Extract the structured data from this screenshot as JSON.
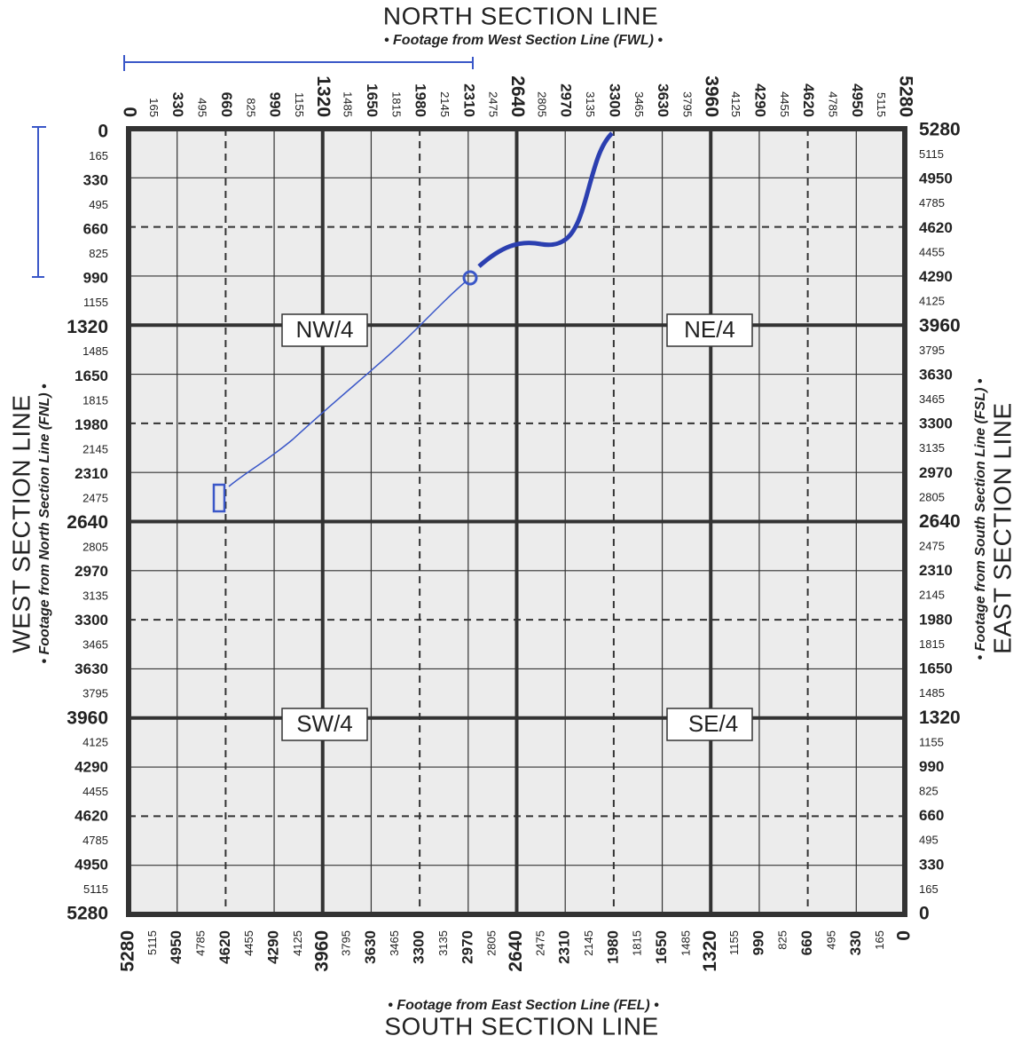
{
  "header": {
    "title": "NORTH SECTION LINE",
    "subtitle": "• Footage from West Section Line (FWL) •"
  },
  "footer": {
    "title": "SOUTH SECTION LINE",
    "subtitle": "• Footage from East Section Line (FEL) •"
  },
  "west": {
    "title": "WEST SECTION LINE",
    "subtitle": "• Footage from North Section Line (FNL) •"
  },
  "east": {
    "title": "EAST SECTION LINE",
    "subtitle": "• Footage from South Section Line (FSL) •"
  },
  "scales": {
    "top": [
      0,
      165,
      330,
      495,
      660,
      825,
      990,
      1155,
      1320,
      1485,
      1650,
      1815,
      1980,
      2145,
      2310,
      2475,
      2640,
      2805,
      2970,
      3135,
      3300,
      3465,
      3630,
      3795,
      3960,
      4125,
      4290,
      4455,
      4620,
      4785,
      4950,
      5115,
      5280
    ],
    "left": [
      0,
      165,
      330,
      495,
      660,
      825,
      990,
      1155,
      1320,
      1485,
      1650,
      1815,
      1980,
      2145,
      2310,
      2475,
      2640,
      2805,
      2970,
      3135,
      3300,
      3465,
      3630,
      3795,
      3960,
      4125,
      4290,
      4455,
      4620,
      4785,
      4950,
      5115,
      5280
    ],
    "right": [
      5280,
      5115,
      4950,
      4785,
      4620,
      4455,
      4290,
      4125,
      3960,
      3795,
      3630,
      3465,
      3300,
      3135,
      2970,
      2805,
      2640,
      2475,
      2310,
      2145,
      1980,
      1815,
      1650,
      1485,
      1320,
      1155,
      990,
      825,
      660,
      495,
      330,
      165,
      0
    ],
    "bottom": [
      5280,
      5115,
      4950,
      4785,
      4620,
      4455,
      4290,
      4125,
      3960,
      3795,
      3630,
      3465,
      3300,
      3135,
      2970,
      2805,
      2640,
      2475,
      2310,
      2145,
      1980,
      1815,
      1650,
      1485,
      1320,
      1155,
      990,
      825,
      660,
      495,
      330,
      165,
      0
    ]
  },
  "quarters": {
    "nw": "NW/4",
    "ne": "NE/4",
    "sw": "SW/4",
    "se": "SE/4"
  }
}
